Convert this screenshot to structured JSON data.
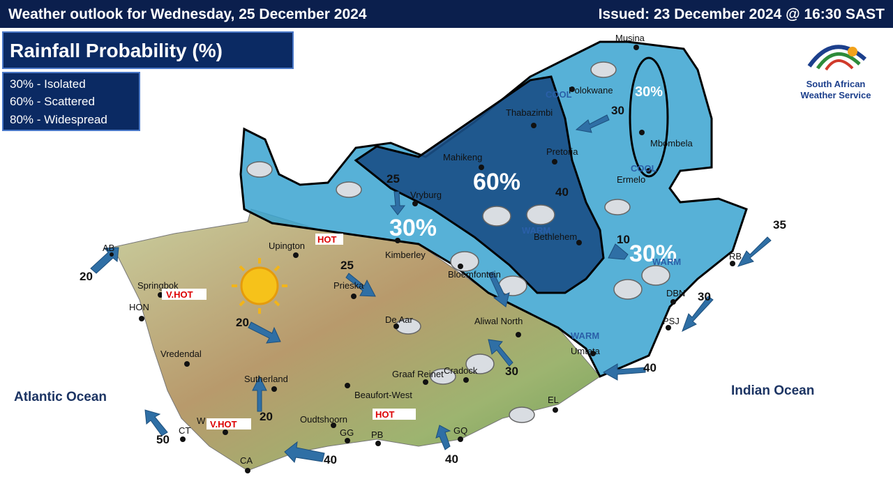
{
  "header": {
    "title": "Weather outlook for Wednesday, 25 December 2024",
    "issued": "Issued: 23 December 2024  @ 16:30 SAST"
  },
  "map_title": "Rainfall Probability (%)",
  "legend": [
    "30% - Isolated",
    "60% - Scattered",
    "80% - Widespread"
  ],
  "logo": [
    "South African",
    "Weather Service"
  ],
  "regions": [
    "60%",
    "30%",
    "30%",
    "30%"
  ],
  "cities": [
    "Musina",
    "Polokwane",
    "Thabazimbi",
    "Mahikeng",
    "Pretoria",
    "Mbombela",
    "Ermelo",
    "Vryburg",
    "Kimberley",
    "Bloemfontein",
    "Bethlehem",
    "Upington",
    "Prieska",
    "De Aar",
    "Aliwal North",
    "Springbok",
    "HON",
    "Vredendal",
    "Sutherland",
    "Graaf Reinet",
    "Cradock",
    "Beaufort-West",
    "Oudtshoorn",
    "GG",
    "PB",
    "GQ",
    "CT",
    "CA",
    "AB",
    "EL",
    "Umtata",
    "RB",
    "DBN",
    "PSJ",
    "W"
  ],
  "temperature_labels": [
    "HOT",
    "V.HOT",
    "V.HOT",
    "HOT",
    "COOL",
    "COOL",
    "WARM",
    "WARM",
    "WARM"
  ],
  "winds": [
    "20",
    "20",
    "25",
    "25",
    "30",
    "30",
    "35",
    "40",
    "40",
    "40",
    "50",
    "20",
    "40",
    "30",
    "10"
  ],
  "oceans": [
    "Atlantic Ocean",
    "Indian Ocean"
  ]
}
